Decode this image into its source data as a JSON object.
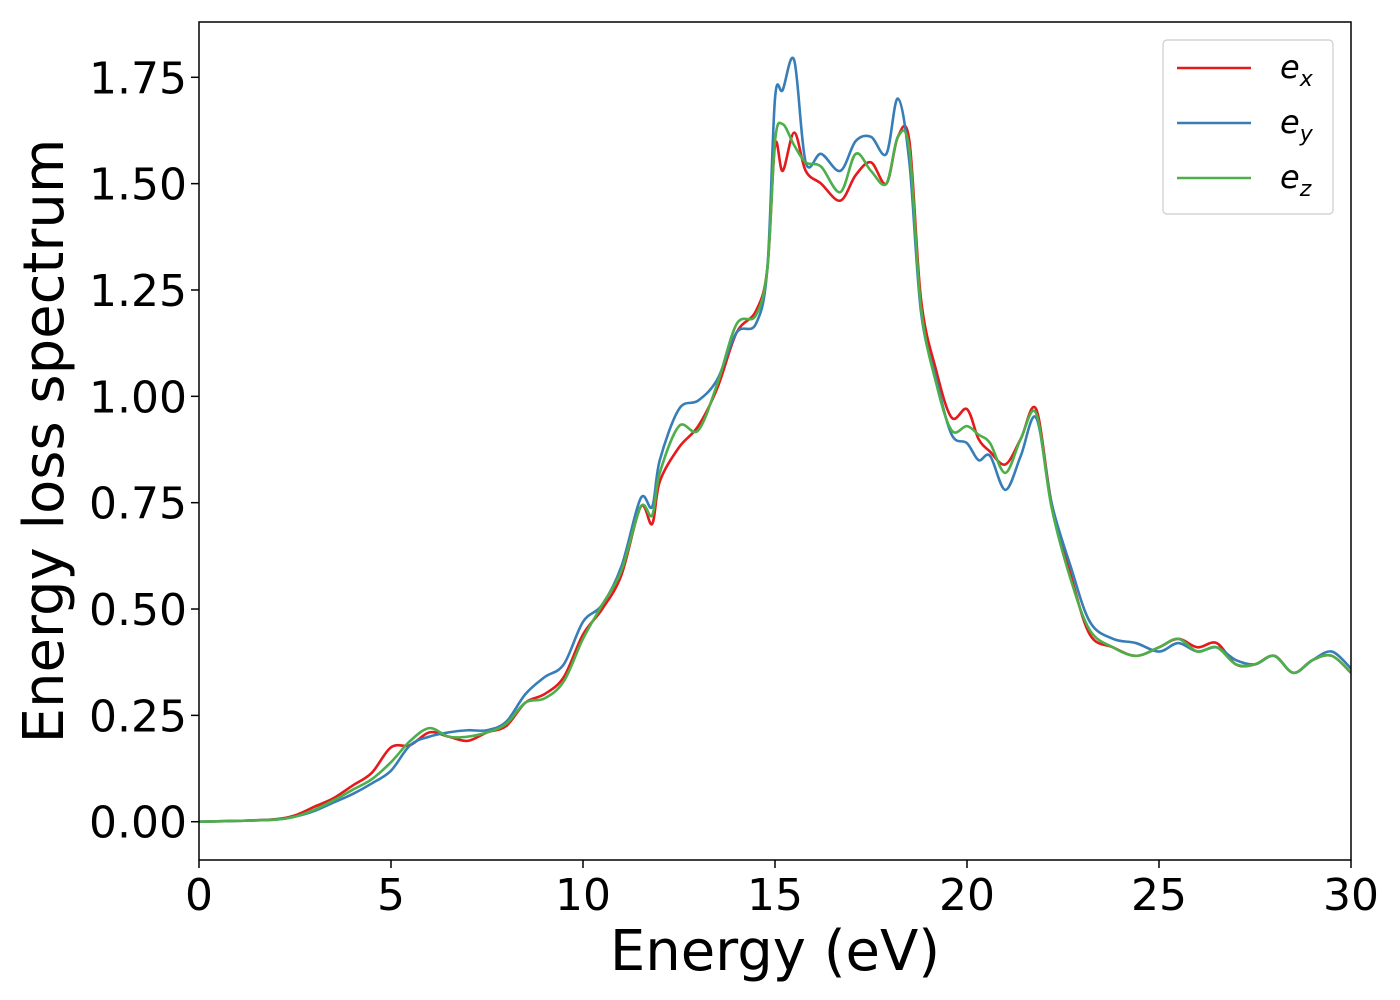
{
  "chart_data": {
    "type": "line",
    "xlabel": "Energy (eV)",
    "ylabel": "Energy loss spectrum",
    "xlim": [
      0,
      30
    ],
    "ylim": [
      -0.09,
      1.88
    ],
    "xticks": [
      0,
      5,
      10,
      15,
      20,
      25,
      30
    ],
    "xtick_labels": [
      "0",
      "5",
      "10",
      "15",
      "20",
      "25",
      "30"
    ],
    "yticks": [
      0,
      0.25,
      0.5,
      0.75,
      1.0,
      1.25,
      1.5,
      1.75
    ],
    "ytick_labels": [
      "0.00",
      "0.25",
      "0.50",
      "0.75",
      "1.00",
      "1.25",
      "1.50",
      "1.75"
    ],
    "grid": false,
    "legend_position": "top-right",
    "series": [
      {
        "name": "e_x",
        "label_base": "e",
        "label_sub": "x",
        "color": "#e41a1c",
        "x": [
          0,
          1,
          2,
          2.5,
          3,
          3.5,
          4,
          4.5,
          5,
          5.5,
          6,
          6.5,
          7,
          7.5,
          8,
          8.5,
          9,
          9.5,
          10,
          10.5,
          11,
          11.5,
          11.8,
          12,
          12.5,
          13,
          13.5,
          14,
          14.5,
          14.8,
          15,
          15.2,
          15.5,
          15.8,
          16.2,
          16.7,
          17.1,
          17.5,
          17.9,
          18.2,
          18.5,
          18.8,
          19.2,
          19.6,
          20,
          20.3,
          20.6,
          21,
          21.4,
          21.8,
          22.2,
          22.7,
          23.2,
          23.8,
          24.4,
          25,
          25.5,
          26,
          26.5,
          27,
          27.5,
          28,
          28.5,
          29,
          29.5,
          30
        ],
        "y": [
          0,
          0.002,
          0.006,
          0.015,
          0.035,
          0.055,
          0.085,
          0.115,
          0.175,
          0.18,
          0.21,
          0.2,
          0.19,
          0.21,
          0.225,
          0.28,
          0.3,
          0.34,
          0.44,
          0.5,
          0.58,
          0.74,
          0.7,
          0.8,
          0.88,
          0.93,
          1.02,
          1.15,
          1.2,
          1.3,
          1.59,
          1.53,
          1.62,
          1.53,
          1.5,
          1.46,
          1.52,
          1.55,
          1.5,
          1.61,
          1.6,
          1.23,
          1.06,
          0.95,
          0.97,
          0.9,
          0.87,
          0.84,
          0.9,
          0.97,
          0.75,
          0.58,
          0.44,
          0.41,
          0.39,
          0.41,
          0.43,
          0.41,
          0.42,
          0.37,
          0.37,
          0.39,
          0.35,
          0.38,
          0.39,
          0.35
        ]
      },
      {
        "name": "e_y",
        "label_base": "e",
        "label_sub": "y",
        "color": "#377eb8",
        "x": [
          0,
          1,
          2,
          2.5,
          3,
          3.5,
          4,
          4.5,
          5,
          5.5,
          6,
          6.5,
          7,
          7.5,
          8,
          8.5,
          9,
          9.5,
          10,
          10.5,
          11,
          11.5,
          11.8,
          12,
          12.5,
          13,
          13.5,
          14,
          14.5,
          14.8,
          15,
          15.2,
          15.5,
          15.8,
          16.2,
          16.7,
          17.1,
          17.5,
          17.9,
          18.2,
          18.5,
          18.8,
          19.2,
          19.6,
          20,
          20.3,
          20.6,
          21,
          21.4,
          21.8,
          22.2,
          22.7,
          23.2,
          23.8,
          24.4,
          25,
          25.5,
          26,
          26.5,
          27,
          27.5,
          28,
          28.5,
          29,
          29.5,
          30
        ],
        "y": [
          0,
          0.002,
          0.005,
          0.012,
          0.025,
          0.045,
          0.065,
          0.09,
          0.12,
          0.18,
          0.2,
          0.21,
          0.215,
          0.215,
          0.235,
          0.3,
          0.34,
          0.37,
          0.47,
          0.51,
          0.6,
          0.76,
          0.74,
          0.85,
          0.97,
          0.99,
          1.04,
          1.15,
          1.17,
          1.3,
          1.7,
          1.72,
          1.79,
          1.55,
          1.57,
          1.53,
          1.6,
          1.61,
          1.57,
          1.7,
          1.55,
          1.2,
          1.04,
          0.91,
          0.89,
          0.85,
          0.86,
          0.78,
          0.86,
          0.95,
          0.75,
          0.6,
          0.47,
          0.43,
          0.42,
          0.4,
          0.42,
          0.4,
          0.41,
          0.38,
          0.37,
          0.39,
          0.35,
          0.38,
          0.4,
          0.36
        ]
      },
      {
        "name": "e_z",
        "label_base": "e",
        "label_sub": "z",
        "color": "#4daf4a",
        "x": [
          0,
          1,
          2,
          2.5,
          3,
          3.5,
          4,
          4.5,
          5,
          5.5,
          6,
          6.5,
          7,
          7.5,
          8,
          8.5,
          9,
          9.5,
          10,
          10.5,
          11,
          11.5,
          11.8,
          12,
          12.5,
          13,
          13.5,
          14,
          14.5,
          14.8,
          15,
          15.2,
          15.5,
          15.8,
          16.2,
          16.7,
          17.1,
          17.5,
          17.9,
          18.2,
          18.5,
          18.8,
          19.2,
          19.6,
          20,
          20.3,
          20.6,
          21,
          21.4,
          21.8,
          22.2,
          22.7,
          23.2,
          23.8,
          24.4,
          25,
          25.5,
          26,
          26.5,
          27,
          27.5,
          28,
          28.5,
          29,
          29.5,
          30
        ],
        "y": [
          0,
          0.002,
          0.005,
          0.012,
          0.028,
          0.05,
          0.075,
          0.1,
          0.14,
          0.19,
          0.22,
          0.2,
          0.2,
          0.21,
          0.23,
          0.28,
          0.29,
          0.33,
          0.43,
          0.51,
          0.59,
          0.74,
          0.72,
          0.82,
          0.93,
          0.92,
          1.03,
          1.17,
          1.19,
          1.3,
          1.6,
          1.64,
          1.59,
          1.55,
          1.54,
          1.48,
          1.57,
          1.53,
          1.5,
          1.61,
          1.58,
          1.21,
          1.03,
          0.92,
          0.93,
          0.91,
          0.89,
          0.82,
          0.9,
          0.96,
          0.74,
          0.57,
          0.45,
          0.41,
          0.39,
          0.41,
          0.43,
          0.4,
          0.41,
          0.37,
          0.37,
          0.39,
          0.35,
          0.38,
          0.39,
          0.35
        ]
      }
    ]
  }
}
